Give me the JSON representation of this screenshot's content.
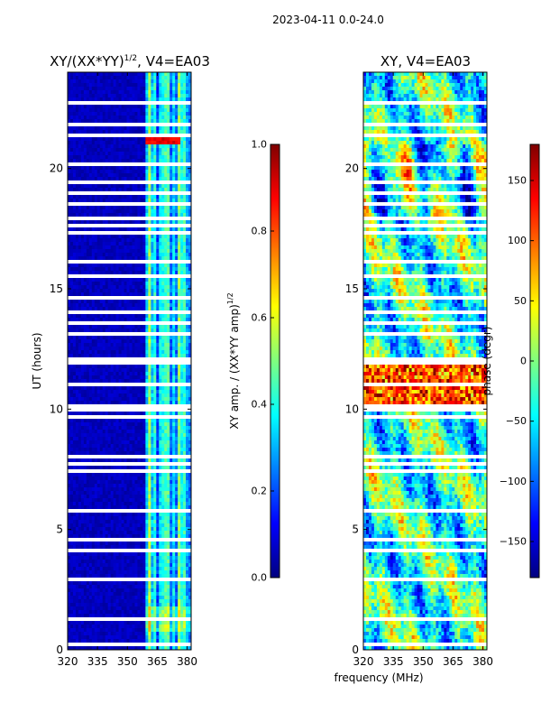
{
  "suptitle": "2023-04-11 0.0-24.0",
  "colors": {
    "jet": [
      "#00007f",
      "#0000ff",
      "#007fff",
      "#00ffff",
      "#7fff7f",
      "#ffff00",
      "#ff7f00",
      "#ff0000",
      "#7f0000"
    ],
    "gap": "#ffffff",
    "frame": "#000000"
  },
  "chart_data": [
    {
      "type": "heatmap",
      "title_main": "XY/(XX*YY)",
      "title_sup": "1/2",
      "title_tail": ", V4=EA03",
      "xlabel": "",
      "ylabel": "UT (hours)",
      "xlim": [
        320,
        382
      ],
      "ylim": [
        0,
        24
      ],
      "xticks": [
        "320",
        "335",
        "350",
        "365",
        "380"
      ],
      "xtick_values": [
        320,
        335,
        350,
        365,
        380
      ],
      "yticks": [
        "0",
        "5",
        "10",
        "15",
        "20"
      ],
      "ytick_values": [
        0,
        5,
        10,
        15,
        20
      ],
      "data_description": "Normalized XY amplitude: near 0 for 320-359 MHz; 0.3-0.6 for 360-382 MHz with stronger channels near 0.5; bright peak ~0.9 near 21 h around 360-375 MHz",
      "high_band_start_mhz": 359.5,
      "peak_hour": 21.2,
      "colorbar": {
        "label_main": "XY amp. / (XX*YY amp)",
        "label_sup": "1/2",
        "range": [
          0,
          1
        ],
        "ticks": [
          "0.0",
          "0.2",
          "0.4",
          "0.6",
          "0.8",
          "1.0"
        ],
        "tick_values": [
          0,
          0.2,
          0.4,
          0.6,
          0.8,
          1.0
        ]
      }
    },
    {
      "type": "heatmap",
      "title_main": "XY, V4=EA03",
      "xlabel": "frequency (MHz)",
      "ylabel": "",
      "xlim": [
        320,
        382
      ],
      "ylim": [
        0,
        24
      ],
      "xticks": [
        "320",
        "335",
        "350",
        "365",
        "380"
      ],
      "xtick_values": [
        320,
        335,
        350,
        365,
        380
      ],
      "yticks": [
        "0",
        "5",
        "10",
        "15",
        "20"
      ],
      "ytick_values": [
        0,
        5,
        10,
        15,
        20
      ],
      "data_description": "XY phase spanning -180 to 180 degrees; noisy structure with large positive phases (red/orange) around 10-12 h and 18-21 h",
      "colorbar": {
        "label": "phase (degr)",
        "range": [
          -180,
          180
        ],
        "ticks": [
          "−150",
          "−100",
          "−50",
          "0",
          "50",
          "100",
          "150"
        ],
        "tick_values": [
          -150,
          -100,
          -50,
          0,
          50,
          100,
          150
        ]
      }
    }
  ],
  "flagged_hours": [
    0.25,
    0.45,
    1.25,
    1.95,
    2.95,
    3.6,
    4.15,
    4.55,
    5.75,
    5.85,
    6.9,
    7.4,
    7.7,
    8.05,
    8.55,
    9.7,
    10.0,
    10.1,
    11.0,
    11.9,
    12.05,
    12.3,
    13.1,
    13.55,
    14.0,
    14.6,
    15.0,
    15.5,
    16.1,
    16.65,
    17.3,
    17.6,
    17.9,
    18.3,
    18.55,
    19.0,
    19.4,
    20.15,
    20.85,
    21.4,
    21.85,
    22.35,
    22.75,
    23.1,
    23.4
  ]
}
